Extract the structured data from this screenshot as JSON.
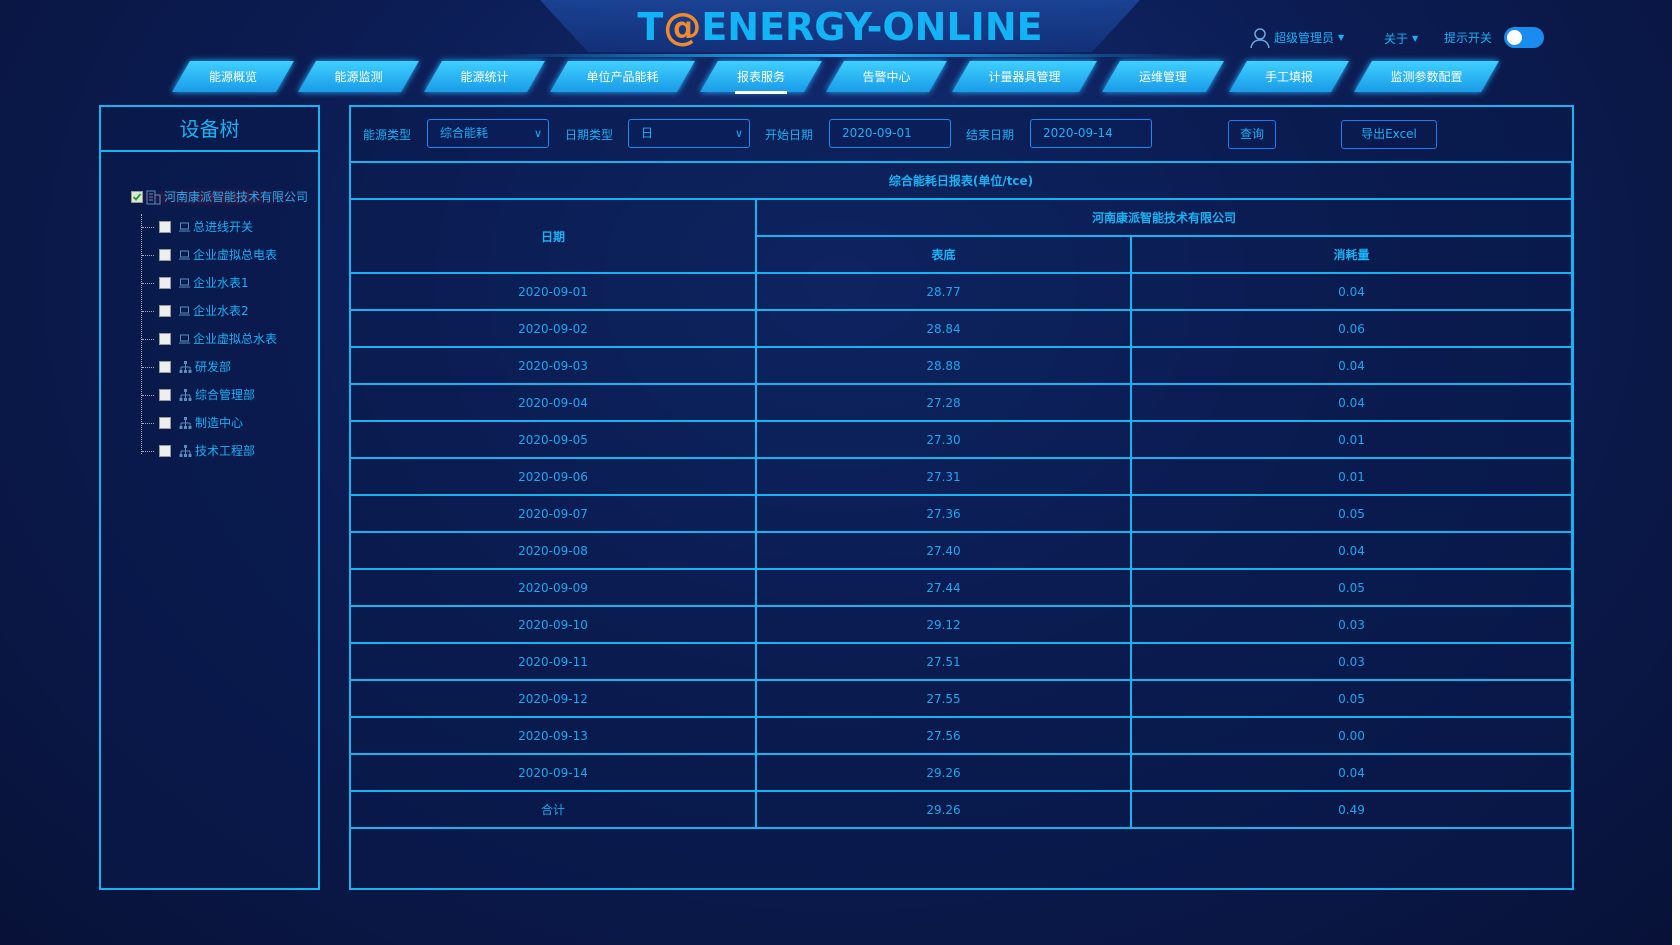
{
  "header": {
    "logo_text": "T@ENERGY-ONLINE",
    "user": "超级管理员",
    "about": "关于",
    "tip_switch": "提示开关",
    "tip_switch_on": true
  },
  "nav": {
    "tabs": [
      {
        "label": "能源概览"
      },
      {
        "label": "能源监测"
      },
      {
        "label": "能源统计"
      },
      {
        "label": "单位产品能耗"
      },
      {
        "label": "报表服务",
        "active": true
      },
      {
        "label": "告警中心"
      },
      {
        "label": "计量器具管理"
      },
      {
        "label": "运维管理"
      },
      {
        "label": "手工填报"
      },
      {
        "label": "监测参数配置"
      }
    ]
  },
  "tree": {
    "title": "设备树",
    "root": {
      "label": "河南康派智能技术有限公司",
      "checked": true
    },
    "children": [
      {
        "label": "总进线开关",
        "icon": "meter-icon"
      },
      {
        "label": "企业虚拟总电表",
        "icon": "meter-icon"
      },
      {
        "label": "企业水表1",
        "icon": "meter-icon"
      },
      {
        "label": "企业水表2",
        "icon": "meter-icon"
      },
      {
        "label": "企业虚拟总水表",
        "icon": "meter-icon"
      },
      {
        "label": "研发部",
        "icon": "org-icon"
      },
      {
        "label": "综合管理部",
        "icon": "org-icon"
      },
      {
        "label": "制造中心",
        "icon": "org-icon"
      },
      {
        "label": "技术工程部",
        "icon": "org-icon"
      }
    ]
  },
  "filters": {
    "energy_type_label": "能源类型",
    "energy_type_value": "综合能耗",
    "date_type_label": "日期类型",
    "date_type_value": "日",
    "start_label": "开始日期",
    "start_value": "2020-09-01",
    "end_label": "结束日期",
    "end_value": "2020-09-14",
    "query": "查询",
    "export": "导出Excel"
  },
  "report": {
    "title": "综合能耗日报表(单位/tce)",
    "col_date": "日期",
    "company": "河南康派智能技术有限公司",
    "col_reading": "表底",
    "col_consumption": "消耗量",
    "rows": [
      [
        "2020-09-01",
        "28.77",
        "0.04"
      ],
      [
        "2020-09-02",
        "28.84",
        "0.06"
      ],
      [
        "2020-09-03",
        "28.88",
        "0.04"
      ],
      [
        "2020-09-04",
        "27.28",
        "0.04"
      ],
      [
        "2020-09-05",
        "27.30",
        "0.01"
      ],
      [
        "2020-09-06",
        "27.31",
        "0.01"
      ],
      [
        "2020-09-07",
        "27.36",
        "0.05"
      ],
      [
        "2020-09-08",
        "27.40",
        "0.04"
      ],
      [
        "2020-09-09",
        "27.44",
        "0.05"
      ],
      [
        "2020-09-10",
        "29.12",
        "0.03"
      ],
      [
        "2020-09-11",
        "27.51",
        "0.03"
      ],
      [
        "2020-09-12",
        "27.55",
        "0.05"
      ],
      [
        "2020-09-13",
        "27.56",
        "0.00"
      ],
      [
        "2020-09-14",
        "29.26",
        "0.04"
      ]
    ],
    "total": [
      "合计",
      "29.26",
      "0.49"
    ]
  },
  "colors": {
    "accent": "#14b4f0",
    "logo_at": "#f08a2c",
    "background": "#0c1d55"
  }
}
